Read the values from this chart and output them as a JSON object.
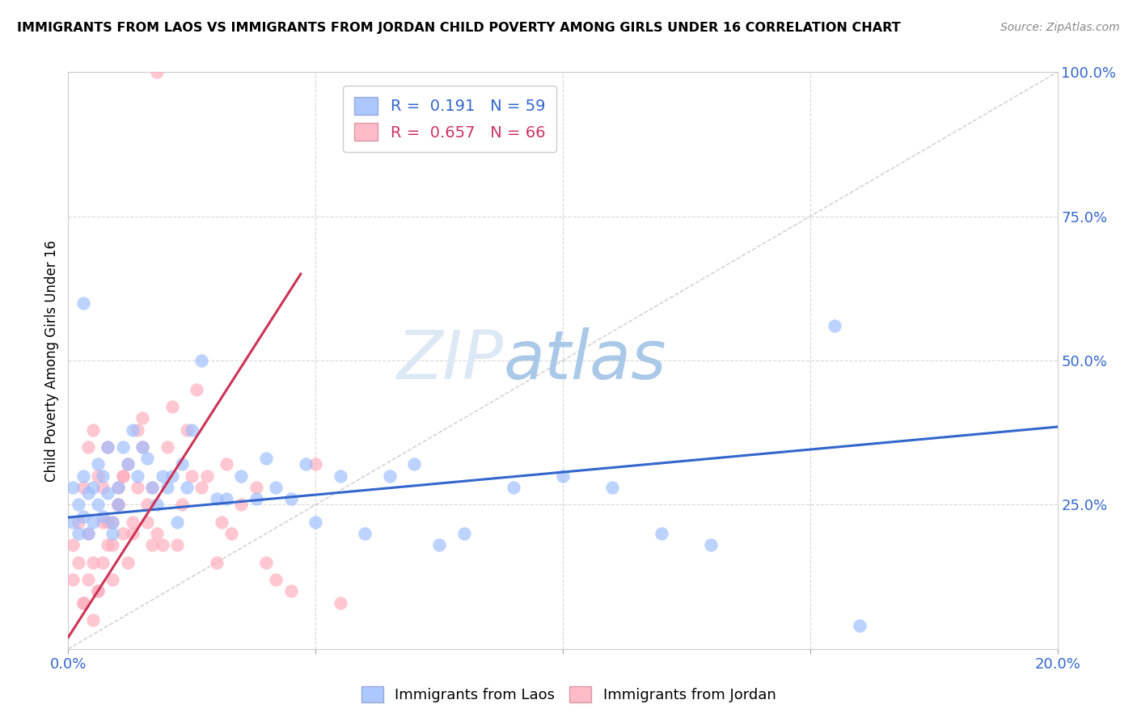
{
  "title": "IMMIGRANTS FROM LAOS VS IMMIGRANTS FROM JORDAN CHILD POVERTY AMONG GIRLS UNDER 16 CORRELATION CHART",
  "source": "Source: ZipAtlas.com",
  "ylabel": "Child Poverty Among Girls Under 16",
  "legend_label_blue": "Immigrants from Laos",
  "legend_label_pink": "Immigrants from Jordan",
  "R_blue": 0.191,
  "N_blue": 59,
  "R_pink": 0.657,
  "N_pink": 66,
  "color_blue": "#99bbff",
  "color_pink": "#ffaabb",
  "color_blue_line": "#3366cc",
  "color_pink_line": "#cc3355",
  "xlim": [
    0.0,
    0.2
  ],
  "ylim": [
    0.0,
    1.0
  ],
  "watermark_zip": "ZIP",
  "watermark_atlas": "atlas",
  "blue_scatter_x": [
    0.001,
    0.001,
    0.002,
    0.002,
    0.003,
    0.003,
    0.004,
    0.004,
    0.005,
    0.005,
    0.006,
    0.006,
    0.007,
    0.007,
    0.008,
    0.008,
    0.009,
    0.009,
    0.01,
    0.01,
    0.011,
    0.012,
    0.013,
    0.014,
    0.015,
    0.016,
    0.017,
    0.018,
    0.019,
    0.02,
    0.021,
    0.022,
    0.023,
    0.024,
    0.025,
    0.027,
    0.03,
    0.032,
    0.035,
    0.038,
    0.04,
    0.042,
    0.045,
    0.048,
    0.05,
    0.055,
    0.06,
    0.065,
    0.07,
    0.075,
    0.08,
    0.09,
    0.1,
    0.11,
    0.12,
    0.13,
    0.155,
    0.16,
    0.003
  ],
  "blue_scatter_y": [
    0.22,
    0.28,
    0.2,
    0.25,
    0.23,
    0.3,
    0.2,
    0.27,
    0.28,
    0.22,
    0.32,
    0.25,
    0.3,
    0.23,
    0.27,
    0.35,
    0.2,
    0.22,
    0.28,
    0.25,
    0.35,
    0.32,
    0.38,
    0.3,
    0.35,
    0.33,
    0.28,
    0.25,
    0.3,
    0.28,
    0.3,
    0.22,
    0.32,
    0.28,
    0.38,
    0.5,
    0.26,
    0.26,
    0.3,
    0.26,
    0.33,
    0.28,
    0.26,
    0.32,
    0.22,
    0.3,
    0.2,
    0.3,
    0.32,
    0.18,
    0.2,
    0.28,
    0.3,
    0.28,
    0.2,
    0.18,
    0.56,
    0.04,
    0.6
  ],
  "pink_scatter_x": [
    0.001,
    0.001,
    0.002,
    0.002,
    0.003,
    0.003,
    0.004,
    0.004,
    0.005,
    0.005,
    0.006,
    0.006,
    0.007,
    0.007,
    0.008,
    0.008,
    0.009,
    0.009,
    0.01,
    0.01,
    0.011,
    0.011,
    0.012,
    0.013,
    0.014,
    0.015,
    0.016,
    0.017,
    0.018,
    0.019,
    0.02,
    0.021,
    0.022,
    0.023,
    0.024,
    0.025,
    0.026,
    0.027,
    0.028,
    0.03,
    0.031,
    0.032,
    0.033,
    0.035,
    0.038,
    0.04,
    0.042,
    0.045,
    0.05,
    0.055,
    0.003,
    0.004,
    0.005,
    0.006,
    0.007,
    0.008,
    0.009,
    0.01,
    0.011,
    0.012,
    0.013,
    0.014,
    0.015,
    0.016,
    0.017,
    0.018
  ],
  "pink_scatter_y": [
    0.12,
    0.18,
    0.15,
    0.22,
    0.08,
    0.28,
    0.35,
    0.2,
    0.15,
    0.38,
    0.1,
    0.3,
    0.28,
    0.22,
    0.18,
    0.35,
    0.12,
    0.22,
    0.25,
    0.28,
    0.3,
    0.2,
    0.32,
    0.22,
    0.38,
    0.4,
    0.25,
    0.28,
    0.2,
    0.18,
    0.35,
    0.42,
    0.18,
    0.25,
    0.38,
    0.3,
    0.45,
    0.28,
    0.3,
    0.15,
    0.22,
    0.32,
    0.2,
    0.25,
    0.28,
    0.15,
    0.12,
    0.1,
    0.32,
    0.08,
    0.08,
    0.12,
    0.05,
    0.1,
    0.15,
    0.22,
    0.18,
    0.25,
    0.3,
    0.15,
    0.2,
    0.28,
    0.35,
    0.22,
    0.18,
    1.0
  ],
  "blue_line_x": [
    0.0,
    0.2
  ],
  "blue_line_y": [
    0.228,
    0.385
  ],
  "pink_line_x": [
    0.0,
    0.047
  ],
  "pink_line_y": [
    0.02,
    0.65
  ]
}
